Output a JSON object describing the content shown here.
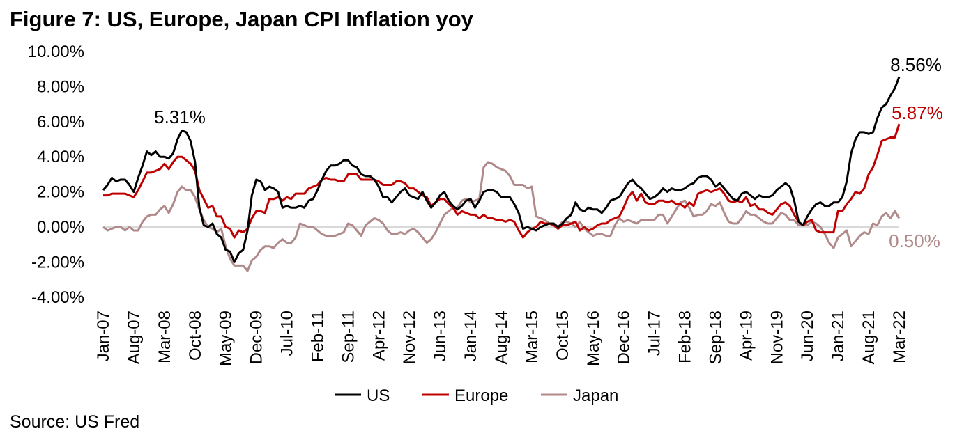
{
  "chart_data": {
    "type": "line",
    "title": "Figure 7: US, Europe, Japan CPI Inflation yoy",
    "source": "Source: US Fred",
    "xlabel": "",
    "ylabel": "",
    "ylim": [
      -4,
      10
    ],
    "y_ticks": [
      "10.00%",
      "8.00%",
      "6.00%",
      "4.00%",
      "2.00%",
      "0.00%",
      "-2.00%",
      "-4.00%"
    ],
    "y_tick_values": [
      10,
      8,
      6,
      4,
      2,
      0,
      -2,
      -4
    ],
    "x_start": "Jan-07",
    "x_end": "Mar-22",
    "x_frequency": "monthly",
    "x_tick_labels": [
      "Jan-07",
      "Aug-07",
      "Mar-08",
      "Oct-08",
      "May-09",
      "Dec-09",
      "Jul-10",
      "Feb-11",
      "Sep-11",
      "Apr-12",
      "Nov-12",
      "Jun-13",
      "Jan-14",
      "Aug-14",
      "Mar-15",
      "Oct-15",
      "May-16",
      "Dec-16",
      "Jul-17",
      "Feb-18",
      "Sep-18",
      "Apr-19",
      "Nov-19",
      "Jun-20",
      "Jan-21",
      "Aug-21",
      "Mar-22"
    ],
    "x_tick_step_months": 7,
    "grid": false,
    "legend_position": "bottom",
    "series": [
      {
        "name": "US",
        "color": "#000000",
        "values": [
          2.1,
          2.4,
          2.8,
          2.6,
          2.7,
          2.7,
          2.4,
          2.0,
          2.8,
          3.5,
          4.3,
          4.1,
          4.3,
          4.0,
          4.0,
          3.9,
          4.2,
          5.0,
          5.5,
          5.4,
          4.9,
          3.7,
          1.1,
          0.1,
          0.0,
          0.2,
          -0.4,
          -0.6,
          -1.3,
          -1.4,
          -2.0,
          -1.5,
          -1.3,
          -0.2,
          1.8,
          2.7,
          2.6,
          2.1,
          2.3,
          2.2,
          2.0,
          1.1,
          1.2,
          1.1,
          1.1,
          1.2,
          1.1,
          1.5,
          1.6,
          2.1,
          2.7,
          3.2,
          3.5,
          3.5,
          3.6,
          3.8,
          3.8,
          3.5,
          3.4,
          3.0,
          2.9,
          2.9,
          2.7,
          2.3,
          1.7,
          1.7,
          1.4,
          1.7,
          2.0,
          2.2,
          1.8,
          1.7,
          1.6,
          2.0,
          1.5,
          1.1,
          1.4,
          1.8,
          2.0,
          1.5,
          1.2,
          1.0,
          1.2,
          1.5,
          1.6,
          1.1,
          1.5,
          2.0,
          2.1,
          2.1,
          2.0,
          1.7,
          1.7,
          1.7,
          1.3,
          0.8,
          -0.1,
          0.0,
          -0.1,
          -0.2,
          0.0,
          0.1,
          0.2,
          0.2,
          0.0,
          0.2,
          0.5,
          0.7,
          1.4,
          1.0,
          0.9,
          1.1,
          1.0,
          1.0,
          0.8,
          1.1,
          1.5,
          1.6,
          1.7,
          2.1,
          2.5,
          2.7,
          2.4,
          2.2,
          1.9,
          1.6,
          1.7,
          1.9,
          2.2,
          2.0,
          2.2,
          2.1,
          2.1,
          2.2,
          2.4,
          2.5,
          2.8,
          2.9,
          2.9,
          2.7,
          2.3,
          2.5,
          2.2,
          1.9,
          1.6,
          1.5,
          1.9,
          2.0,
          1.8,
          1.6,
          1.8,
          1.7,
          1.7,
          1.8,
          2.1,
          2.3,
          2.5,
          2.3,
          1.5,
          0.3,
          0.1,
          0.6,
          1.0,
          1.3,
          1.4,
          1.2,
          1.2,
          1.4,
          1.4,
          1.7,
          2.6,
          4.2,
          5.0,
          5.4,
          5.4,
          5.3,
          5.4,
          6.2,
          6.8,
          7.0,
          7.5,
          7.9,
          8.56
        ]
      },
      {
        "name": "Europe",
        "color": "#C00000",
        "values": [
          1.8,
          1.8,
          1.9,
          1.9,
          1.9,
          1.9,
          1.8,
          1.7,
          2.1,
          2.6,
          3.1,
          3.1,
          3.2,
          3.3,
          3.6,
          3.3,
          3.7,
          4.0,
          4.0,
          3.8,
          3.6,
          3.2,
          2.1,
          1.6,
          1.1,
          1.2,
          0.6,
          0.6,
          0.0,
          -0.1,
          -0.6,
          -0.2,
          -0.3,
          -0.1,
          0.5,
          0.9,
          0.9,
          0.8,
          1.6,
          1.6,
          1.7,
          1.5,
          1.7,
          1.6,
          1.9,
          1.9,
          1.9,
          2.2,
          2.3,
          2.4,
          2.7,
          2.8,
          2.7,
          2.7,
          2.6,
          2.6,
          3.0,
          3.0,
          3.0,
          2.7,
          2.7,
          2.7,
          2.7,
          2.6,
          2.4,
          2.4,
          2.4,
          2.6,
          2.6,
          2.5,
          2.2,
          2.2,
          2.0,
          1.8,
          1.7,
          1.2,
          1.4,
          1.6,
          1.6,
          1.3,
          1.1,
          0.7,
          0.9,
          0.8,
          0.7,
          0.7,
          0.5,
          0.7,
          0.5,
          0.5,
          0.4,
          0.4,
          0.3,
          0.4,
          0.3,
          -0.2,
          -0.6,
          -0.3,
          -0.1,
          0.0,
          0.3,
          0.2,
          0.2,
          0.1,
          -0.1,
          0.1,
          0.1,
          0.2,
          0.3,
          -0.2,
          0.0,
          -0.2,
          -0.1,
          0.1,
          0.2,
          0.2,
          0.4,
          0.5,
          0.6,
          1.1,
          1.7,
          2.0,
          1.5,
          1.9,
          1.4,
          1.3,
          1.3,
          1.5,
          1.5,
          1.4,
          1.5,
          1.3,
          1.3,
          1.1,
          1.4,
          1.2,
          1.9,
          2.0,
          2.1,
          2.0,
          2.1,
          2.2,
          1.9,
          1.5,
          1.4,
          1.5,
          1.4,
          1.7,
          1.2,
          1.3,
          1.0,
          1.0,
          0.8,
          0.7,
          1.0,
          1.3,
          1.4,
          1.2,
          0.7,
          0.3,
          0.1,
          0.3,
          0.4,
          -0.2,
          -0.3,
          -0.3,
          -0.3,
          -0.3,
          0.9,
          0.9,
          1.3,
          1.6,
          2.0,
          1.9,
          2.2,
          3.0,
          3.4,
          4.1,
          4.9,
          5.0,
          5.1,
          5.1,
          5.87
        ]
      },
      {
        "name": "Japan",
        "color": "#B08A8A",
        "values": [
          0.0,
          -0.2,
          -0.1,
          0.0,
          0.0,
          -0.2,
          0.0,
          -0.2,
          -0.2,
          0.3,
          0.6,
          0.7,
          0.7,
          1.0,
          1.2,
          0.8,
          1.3,
          2.0,
          2.3,
          2.1,
          2.1,
          1.7,
          1.0,
          0.4,
          0.0,
          -0.1,
          -0.3,
          -0.1,
          -1.1,
          -1.8,
          -2.2,
          -2.2,
          -2.2,
          -2.5,
          -1.9,
          -1.7,
          -1.3,
          -1.1,
          -1.1,
          -1.2,
          -0.9,
          -0.7,
          -0.9,
          -0.9,
          -0.6,
          0.2,
          0.1,
          0.0,
          0.0,
          -0.2,
          -0.4,
          -0.5,
          -0.5,
          -0.5,
          -0.4,
          -0.3,
          0.2,
          0.1,
          -0.2,
          -0.5,
          0.1,
          0.3,
          0.5,
          0.4,
          0.2,
          -0.2,
          -0.4,
          -0.4,
          -0.3,
          -0.4,
          -0.2,
          -0.1,
          -0.3,
          -0.6,
          -0.9,
          -0.7,
          -0.3,
          0.2,
          0.7,
          0.9,
          1.1,
          1.1,
          1.5,
          1.6,
          1.4,
          1.5,
          1.6,
          3.4,
          3.7,
          3.6,
          3.4,
          3.3,
          3.2,
          2.9,
          2.4,
          2.4,
          2.4,
          2.2,
          2.3,
          0.6,
          0.5,
          0.4,
          0.2,
          0.2,
          0.0,
          0.3,
          0.3,
          0.2,
          0.0,
          0.3,
          -0.1,
          -0.3,
          -0.5,
          -0.4,
          -0.4,
          -0.5,
          -0.5,
          0.1,
          0.5,
          0.3,
          0.4,
          0.3,
          0.2,
          0.4,
          0.4,
          0.4,
          0.4,
          0.7,
          0.7,
          0.2,
          0.6,
          1.0,
          1.4,
          1.5,
          1.1,
          0.6,
          0.7,
          0.7,
          0.9,
          1.3,
          1.2,
          1.4,
          0.8,
          0.3,
          0.2,
          0.2,
          0.5,
          0.9,
          0.7,
          0.7,
          0.5,
          0.3,
          0.2,
          0.2,
          0.5,
          0.8,
          0.7,
          0.4,
          0.4,
          0.1,
          0.1,
          0.1,
          0.3,
          0.2,
          0.0,
          -0.4,
          -0.9,
          -1.2,
          -0.6,
          -0.4,
          -0.2,
          -1.1,
          -0.8,
          -0.5,
          -0.3,
          -0.4,
          0.2,
          0.1,
          0.6,
          0.8,
          0.5,
          0.9,
          0.5
        ]
      }
    ],
    "annotations": [
      {
        "text": "5.31%",
        "series": "US",
        "color": "#000000"
      },
      {
        "text": "8.56%",
        "series": "US",
        "color": "#000000"
      },
      {
        "text": "5.87%",
        "series": "Europe",
        "color": "#C00000"
      },
      {
        "text": "0.50%",
        "series": "Japan",
        "color": "#B08A8A"
      }
    ],
    "zero_line_color": "#D9D9D9"
  }
}
